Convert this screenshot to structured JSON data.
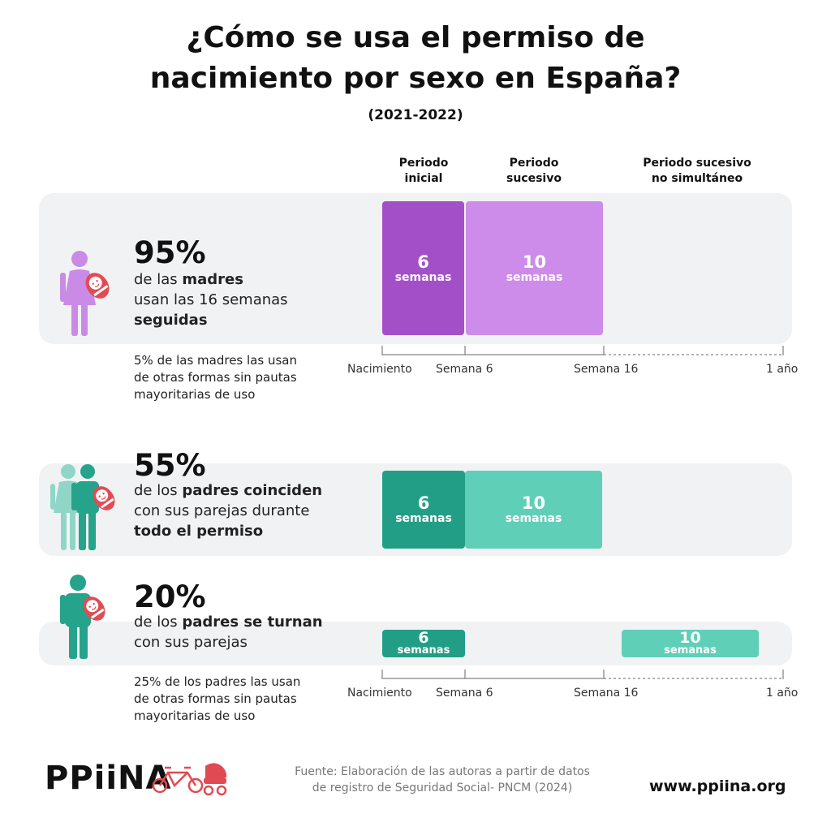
{
  "title_line1": "¿Cómo se usa el permiso de",
  "title_line2": "nacimiento por sexo en España?",
  "subtitle": "(2021-2022)",
  "columns": {
    "initial_1": "Periodo",
    "initial_2": "inicial",
    "successive_1": "Periodo",
    "successive_2": "sucesivo",
    "nonsim_1": "Periodo sucesivo",
    "nonsim_2": "no simultáneo"
  },
  "rows": [
    {
      "pct": "95%",
      "line1_a": "de las ",
      "line1_b": "madres",
      "line2": "usan las 16 semanas",
      "line3": "seguidas",
      "note_1": "5% de las madres las usan",
      "note_2": "de otras formas sin pautas",
      "note_3": "mayoritarias de uso",
      "seg1_n": "6",
      "seg1_u": "semanas",
      "seg2_n": "10",
      "seg2_u": "semanas"
    },
    {
      "pct": "55%",
      "line1_a": "de los ",
      "line1_b": "padres coinciden",
      "line2": "con sus parejas durante",
      "line3": "todo el permiso",
      "seg1_n": "6",
      "seg1_u": "semanas",
      "seg2_n": "10",
      "seg2_u": "semanas"
    },
    {
      "pct": "20%",
      "line1_a": "de los ",
      "line1_b": "padres se turnan",
      "line2": "con sus parejas",
      "note_1": "25% de los padres las usan",
      "note_2": "de otras formas sin pautas",
      "note_3": "mayoritarias de uso",
      "seg1_n": "6",
      "seg1_u": "semanas",
      "seg2_n": "10",
      "seg2_u": "semanas"
    }
  ],
  "axis": {
    "t0": "Nacimiento",
    "t1": "Semana 6",
    "t2": "Semana 16",
    "t3": "1 año"
  },
  "footer": {
    "logo": "PPiiNA",
    "source_1": "Fuente: Elaboración de las autoras a partir de datos",
    "source_2": "de registro de Seguridad Social- PNCM (2024)",
    "website": "www.ppiina.org"
  },
  "colors": {
    "purple_dark": "#a350c8",
    "purple_light": "#cd8ce9",
    "green_dark": "#239e86",
    "green_light": "#5fcfb8",
    "mother_icon": "#c98be6",
    "father_icon": "#26a38b",
    "father_icon_light": "#8fd6c7",
    "baby_red": "#e24b54",
    "bike_red": "#e04a52"
  }
}
